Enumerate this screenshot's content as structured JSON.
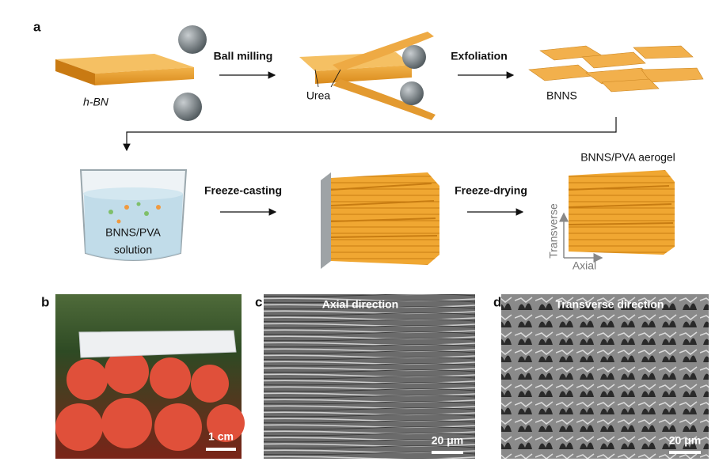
{
  "panel_a": {
    "label": "a",
    "step1": {
      "material": "h-BN",
      "process": "Ball milling"
    },
    "step2": {
      "material": "Urea",
      "process": "Exfoliation"
    },
    "step3": {
      "material": "BNNS"
    },
    "step4": {
      "material_line1": "BNNS/PVA",
      "material_line2": "solution",
      "process": "Freeze-casting"
    },
    "step5": {
      "process": "Freeze-drying"
    },
    "step6": {
      "title": "BNNS/PVA aerogel",
      "axis_vertical": "Transverse",
      "axis_horizontal": "Axial"
    }
  },
  "panel_b": {
    "label": "b",
    "scale_bar": "1 cm"
  },
  "panel_c": {
    "label": "c",
    "title": "Axial direction",
    "scale_bar": "20 μm"
  },
  "panel_d": {
    "label": "d",
    "title": "Transverse direction",
    "scale_bar": "20 μm"
  }
}
